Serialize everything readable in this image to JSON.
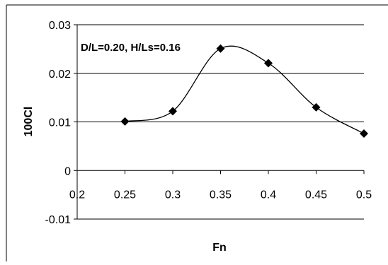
{
  "chart_data": {
    "type": "scatter",
    "title": "",
    "annotation": "D/L=0.20,  H/Ls=0.16",
    "xlabel": "Fn",
    "ylabel": "100Cl",
    "xlim": [
      0.2,
      0.5
    ],
    "ylim": [
      -0.01,
      0.03
    ],
    "xticks": [
      0.2,
      0.25,
      0.3,
      0.35,
      0.4,
      0.45,
      0.5
    ],
    "xtick_labels": [
      "0.2",
      "0.25",
      "0.3",
      "0.35",
      "0.4",
      "0.45",
      "0.5"
    ],
    "yticks": [
      -0.01,
      0,
      0.01,
      0.02,
      0.03
    ],
    "ytick_labels": [
      "-0.01",
      "0",
      "0.01",
      "0.02",
      "0.03"
    ],
    "grid": "horizontal",
    "series": [
      {
        "marker": "diamond",
        "line": "smooth",
        "x": [
          0.25,
          0.3,
          0.35,
          0.4,
          0.45,
          0.5
        ],
        "y": [
          0.0101,
          0.0122,
          0.0251,
          0.0221,
          0.013,
          0.0076
        ]
      }
    ],
    "colors": {
      "line": "#000000",
      "marker": "#000000",
      "grid": "#000000"
    }
  }
}
